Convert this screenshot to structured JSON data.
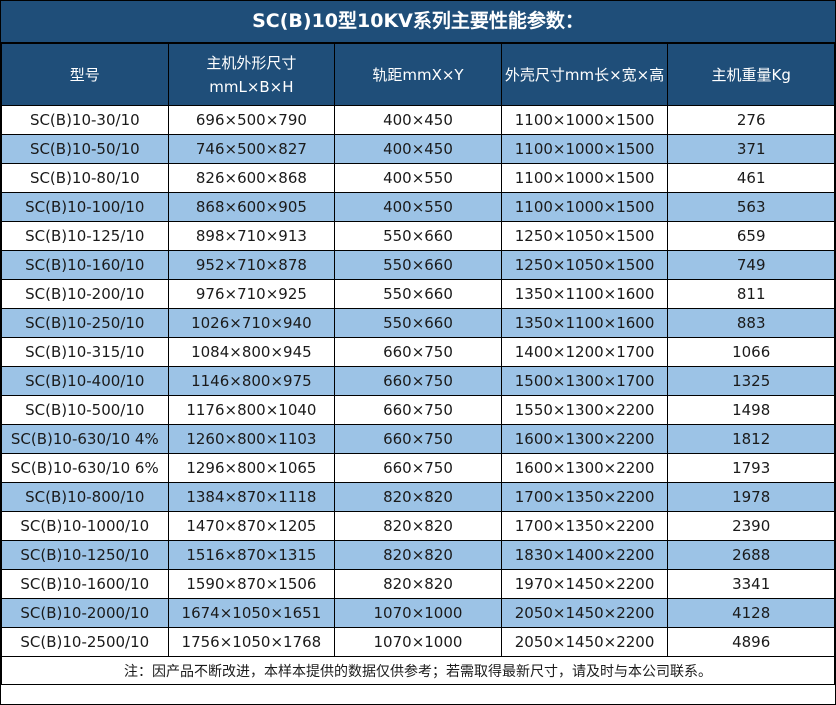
{
  "title": "SC(B)10型10KV系列主要性能参数：",
  "colors": {
    "header_bg": "#1F4E79",
    "header_text": "#FFFFFF",
    "row_alt_bg": "#9CC3E6",
    "row_bg": "#FFFFFF",
    "border": "#000000",
    "body_text": "#1A1A1A"
  },
  "table": {
    "headers": [
      "型号",
      "主机外形尺寸\nmmL×B×H",
      "轨距mmX×Y",
      "外壳尺寸mm长×宽×高",
      "主机重量Kg"
    ],
    "rows": [
      [
        "SC(B)10-30/10",
        "696×500×790",
        "400×450",
        "1100×1000×1500",
        "276"
      ],
      [
        "SC(B)10-50/10",
        "746×500×827",
        "400×450",
        "1100×1000×1500",
        "371"
      ],
      [
        "SC(B)10-80/10",
        "826×600×868",
        "400×550",
        "1100×1000×1500",
        "461"
      ],
      [
        "SC(B)10-100/10",
        "868×600×905",
        "400×550",
        "1100×1000×1500",
        "563"
      ],
      [
        "SC(B)10-125/10",
        "898×710×913",
        "550×660",
        "1250×1050×1500",
        "659"
      ],
      [
        "SC(B)10-160/10",
        "952×710×878",
        "550×660",
        "1250×1050×1500",
        "749"
      ],
      [
        "SC(B)10-200/10",
        "976×710×925",
        "550×660",
        "1350×1100×1600",
        "811"
      ],
      [
        "SC(B)10-250/10",
        "1026×710×940",
        "550×660",
        "1350×1100×1600",
        "883"
      ],
      [
        "SC(B)10-315/10",
        "1084×800×945",
        "660×750",
        "1400×1200×1700",
        "1066"
      ],
      [
        "SC(B)10-400/10",
        "1146×800×975",
        "660×750",
        "1500×1300×1700",
        "1325"
      ],
      [
        "SC(B)10-500/10",
        "1176×800×1040",
        "660×750",
        "1550×1300×2200",
        "1498"
      ],
      [
        "SC(B)10-630/10 4%",
        "1260×800×1103",
        "660×750",
        "1600×1300×2200",
        "1812"
      ],
      [
        "SC(B)10-630/10 6%",
        "1296×800×1065",
        "660×750",
        "1600×1300×2200",
        "1793"
      ],
      [
        "SC(B)10-800/10",
        "1384×870×1118",
        "820×820",
        "1700×1350×2200",
        "1978"
      ],
      [
        "SC(B)10-1000/10",
        "1470×870×1205",
        "820×820",
        "1700×1350×2200",
        "2390"
      ],
      [
        "SC(B)10-1250/10",
        "1516×870×1315",
        "820×820",
        "1830×1400×2200",
        "2688"
      ],
      [
        "SC(B)10-1600/10",
        "1590×870×1506",
        "820×820",
        "1970×1450×2200",
        "3341"
      ],
      [
        "SC(B)10-2000/10",
        "1674×1050×1651",
        "1070×1000",
        "2050×1450×2200",
        "4128"
      ],
      [
        "SC(B)10-2500/10",
        "1756×1050×1768",
        "1070×1000",
        "2050×1450×2200",
        "4896"
      ]
    ],
    "footer_note": "注：因产品不断改进，本样本提供的数据仅供参考；若需取得最新尺寸，请及时与本公司联系。"
  }
}
